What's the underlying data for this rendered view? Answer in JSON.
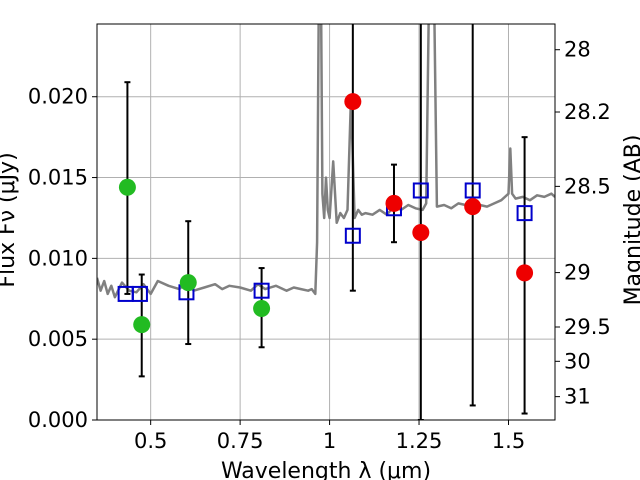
{
  "chart_data": {
    "type": "scatter",
    "xlabel": "Wavelength  λ (μm)",
    "ylabel": "Flux Fν (μJy)",
    "y2label": "Magnitude (AB)",
    "xlim": [
      0.35,
      1.63
    ],
    "ylim": [
      0.0,
      0.0245
    ],
    "grid": true,
    "x_ticks": [
      {
        "value": 0.5,
        "label": "0.5"
      },
      {
        "value": 0.75,
        "label": "0.75"
      },
      {
        "value": 1.0,
        "label": "1"
      },
      {
        "value": 1.25,
        "label": "1.25"
      },
      {
        "value": 1.5,
        "label": "1.5"
      }
    ],
    "y_ticks": [
      {
        "value": 0.0,
        "label": "0.000"
      },
      {
        "value": 0.005,
        "label": "0.005"
      },
      {
        "value": 0.01,
        "label": "0.010"
      },
      {
        "value": 0.015,
        "label": "0.015"
      },
      {
        "value": 0.02,
        "label": "0.020"
      }
    ],
    "y2_ticks": [
      {
        "mag": 28.0,
        "label": "28"
      },
      {
        "mag": 28.2,
        "label": "28.2"
      },
      {
        "mag": 28.5,
        "label": "28.5"
      },
      {
        "mag": 29.0,
        "label": "29"
      },
      {
        "mag": 29.5,
        "label": "29.5"
      },
      {
        "mag": 30.0,
        "label": "30"
      },
      {
        "mag": 31.0,
        "label": "31"
      }
    ],
    "colors": {
      "spectrum": "#808080",
      "model": "#0000cc",
      "observed_optical": "#22bb22",
      "observed_nir": "#ee0000",
      "errorbar": "#000000",
      "grid": "#b0b0b0"
    },
    "spectrum": {
      "x": [
        0.35,
        0.36,
        0.37,
        0.38,
        0.39,
        0.4,
        0.42,
        0.44,
        0.46,
        0.48,
        0.5,
        0.52,
        0.55,
        0.58,
        0.6,
        0.62,
        0.65,
        0.68,
        0.7,
        0.72,
        0.75,
        0.78,
        0.8,
        0.82,
        0.85,
        0.88,
        0.9,
        0.92,
        0.94,
        0.95,
        0.96,
        0.965,
        0.97,
        0.975,
        0.98,
        0.985,
        0.99,
        0.995,
        1.0,
        1.01,
        1.02,
        1.03,
        1.04,
        1.05,
        1.06,
        1.07,
        1.08,
        1.09,
        1.1,
        1.12,
        1.14,
        1.16,
        1.18,
        1.2,
        1.22,
        1.24,
        1.26,
        1.27,
        1.28,
        1.29,
        1.3,
        1.32,
        1.34,
        1.36,
        1.38,
        1.4,
        1.42,
        1.44,
        1.46,
        1.48,
        1.5,
        1.505,
        1.51,
        1.52,
        1.54,
        1.56,
        1.58,
        1.6,
        1.62,
        1.63
      ],
      "y": [
        0.0088,
        0.008,
        0.0086,
        0.0078,
        0.0083,
        0.0076,
        0.0085,
        0.008,
        0.0079,
        0.0084,
        0.0078,
        0.0086,
        0.0083,
        0.0081,
        0.0085,
        0.008,
        0.0082,
        0.0084,
        0.0081,
        0.0083,
        0.0082,
        0.008,
        0.0084,
        0.0081,
        0.0083,
        0.008,
        0.0082,
        0.0081,
        0.008,
        0.0081,
        0.0078,
        0.011,
        0.026,
        0.03,
        0.014,
        0.0125,
        0.015,
        0.013,
        0.0125,
        0.016,
        0.0122,
        0.0128,
        0.0125,
        0.013,
        0.02,
        0.0125,
        0.013,
        0.0127,
        0.0128,
        0.0127,
        0.013,
        0.0127,
        0.0132,
        0.013,
        0.0133,
        0.0131,
        0.013,
        0.0134,
        0.03,
        0.03,
        0.0132,
        0.0133,
        0.0131,
        0.0134,
        0.0133,
        0.0135,
        0.0133,
        0.0132,
        0.0134,
        0.0136,
        0.014,
        0.0168,
        0.014,
        0.0137,
        0.0138,
        0.0136,
        0.0139,
        0.0138,
        0.014,
        0.0138
      ]
    },
    "series": [
      {
        "marker": "open-square",
        "x": [
          0.43,
          0.47,
          0.6,
          0.81,
          1.065,
          1.18,
          1.255,
          1.4,
          1.545
        ],
        "y": [
          0.0078,
          0.0078,
          0.0079,
          0.008,
          0.0114,
          0.0131,
          0.0142,
          0.0142,
          0.0128
        ]
      },
      {
        "marker": "filled-circle",
        "color_key": "observed_optical",
        "x": [
          0.435,
          0.475,
          0.605,
          0.81
        ],
        "y": [
          0.0144,
          0.0059,
          0.0085,
          0.0069
        ],
        "err": [
          [
            0.0078,
            0.0209
          ],
          [
            0.0027,
            0.009
          ],
          [
            0.0047,
            0.0123
          ],
          [
            0.0045,
            0.0094
          ]
        ]
      },
      {
        "marker": "filled-circle",
        "color_key": "observed_nir",
        "x": [
          1.065,
          1.18,
          1.255,
          1.4,
          1.545
        ],
        "y": [
          0.0197,
          0.0134,
          0.0116,
          0.0132,
          0.0091
        ],
        "err": [
          [
            0.008,
            0.026
          ],
          [
            0.011,
            0.0158
          ],
          [
            0.0,
            0.026
          ],
          [
            0.0009,
            0.026
          ],
          [
            0.0004,
            0.0175
          ]
        ]
      }
    ]
  }
}
